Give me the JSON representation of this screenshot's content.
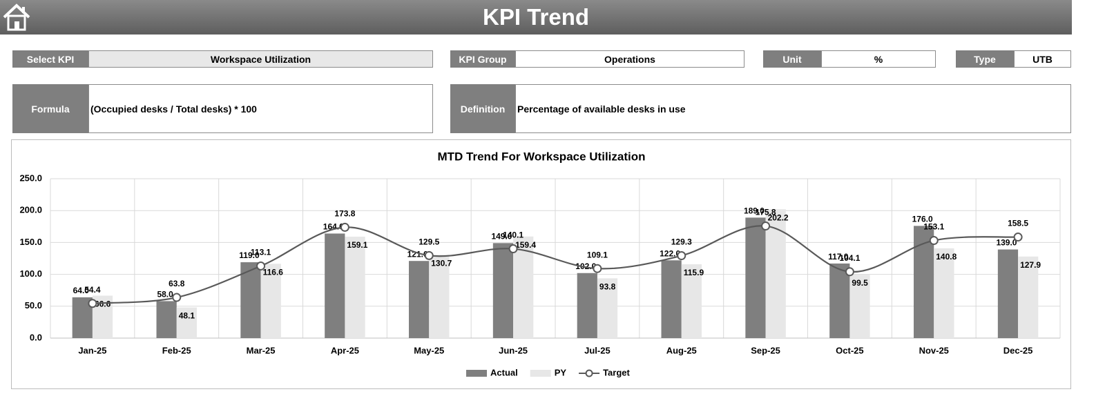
{
  "header": {
    "title": "KPI Trend"
  },
  "fields": {
    "select_kpi": {
      "label": "Select KPI",
      "value": "Workspace Utilization"
    },
    "kpi_group": {
      "label": "KPI Group",
      "value": "Operations"
    },
    "unit": {
      "label": "Unit",
      "value": "%"
    },
    "type": {
      "label": "Type",
      "value": "UTB"
    },
    "formula": {
      "label": "Formula",
      "value": "(Occupied desks / Total desks) * 100"
    },
    "definition": {
      "label": "Definition",
      "value": "Percentage of available desks in use"
    }
  },
  "chart_data": {
    "type": "bar",
    "title": "MTD Trend For Workspace Utilization",
    "categories": [
      "Jan-25",
      "Feb-25",
      "Mar-25",
      "Apr-25",
      "May-25",
      "Jun-25",
      "Jul-25",
      "Aug-25",
      "Sep-25",
      "Oct-25",
      "Nov-25",
      "Dec-25"
    ],
    "series": [
      {
        "name": "Actual",
        "type": "bar",
        "color": "#7f7f7f",
        "values": [
          64,
          58,
          119,
          164,
          121,
          149,
          102,
          122,
          189,
          117,
          176,
          139
        ],
        "value_labels": [
          "64.0",
          "58.0",
          "119.0",
          "164.0",
          "121.0",
          "149.0",
          "102.0",
          "122.0",
          "189.0",
          "117.0",
          "176.0",
          "139.0"
        ]
      },
      {
        "name": "PY",
        "type": "bar",
        "color": "#e7e7e7",
        "values": [
          66.6,
          48.1,
          116.6,
          159.1,
          130.7,
          159.4,
          93.8,
          115.9,
          202.2,
          99.5,
          140.8,
          127.9
        ]
      },
      {
        "name": "Target",
        "type": "line",
        "color": "#595959",
        "marker": "circle",
        "values": [
          54.4,
          63.8,
          113.1,
          173.8,
          129.5,
          140.1,
          109.1,
          129.3,
          175.8,
          104.1,
          153.1,
          158.5
        ]
      }
    ],
    "ylim": [
      0,
      250
    ],
    "yticks": [
      {
        "value": 0,
        "label": "0.0"
      },
      {
        "value": 50,
        "label": "50.0"
      },
      {
        "value": 100,
        "label": "100.0"
      },
      {
        "value": 150,
        "label": "150.0"
      },
      {
        "value": 200,
        "label": "200.0"
      },
      {
        "value": 250,
        "label": "250.0"
      }
    ],
    "grid": true,
    "legend": "bottom"
  }
}
